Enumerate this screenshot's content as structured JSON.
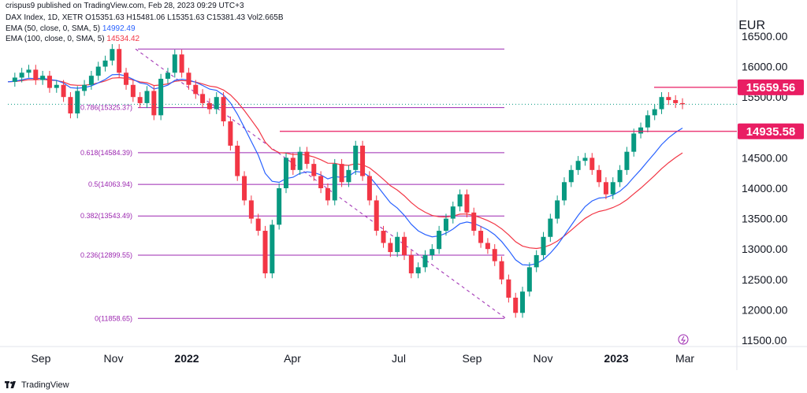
{
  "header": {
    "published": "crispus9 published on TradingView.com, Feb 28, 2023 09:29 UTC+3",
    "symbol": "DAX Index, 1D, XETR",
    "ohlc": "O15351.63 H15481.06 L15351.63 C15381.43 Vol2.665B",
    "ema50_label": "EMA (50, close, 0, SMA, 5)",
    "ema50_value": "14992.49",
    "ema100_label": "EMA (100, close, 0, SMA, 5)",
    "ema100_value": "14534.42",
    "currency": "EUR"
  },
  "footer": {
    "brand": "TradingView"
  },
  "colors": {
    "up": "#089981",
    "down": "#f23645",
    "ema50": "#2962ff",
    "ema100": "#f23645",
    "fib": "#9c27b0",
    "horizontal": "#e91e63",
    "price_tag": "#e91e63"
  },
  "chart_data": {
    "type": "candlestick",
    "title": "DAX Index, 1D, XETR",
    "x_ticks": [
      "Sep",
      "Nov",
      "2022",
      "Apr",
      "Jul",
      "Sep",
      "Nov",
      "2023",
      "Mar"
    ],
    "y_ticks": [
      "16500.00",
      "16000.00",
      "15500.00",
      "15000.00",
      "14500.00",
      "14000.00",
      "13500.00",
      "13000.00",
      "12500.00",
      "12000.00",
      "11500.00"
    ],
    "ylim": [
      11500,
      16500
    ],
    "fib_levels": [
      {
        "ratio": "1",
        "value": 16290
      },
      {
        "ratio": "0.786",
        "label": "0.786(15325.37)",
        "value": 15325.37
      },
      {
        "ratio": "0.618",
        "label": "0.618(14584.39)",
        "value": 14584.39
      },
      {
        "ratio": "0.5",
        "label": "0.5(14063.94)",
        "value": 14063.94
      },
      {
        "ratio": "0.382",
        "label": "0.382(13543.49)",
        "value": 13543.49
      },
      {
        "ratio": "0.236",
        "label": "0.236(12899.55)",
        "value": 12899.55
      },
      {
        "ratio": "0",
        "label": "0(11858.65)",
        "value": 11858.65
      }
    ],
    "price_tags": [
      {
        "label": "15659.56",
        "value": 15659.56
      },
      {
        "label": "14935.58",
        "value": 14935.58
      }
    ],
    "last_close": 15381.43,
    "series_close": [
      15750,
      15820,
      15900,
      15950,
      15780,
      15850,
      15650,
      15700,
      15500,
      15230,
      15600,
      15700,
      15850,
      16000,
      16100,
      16290,
      15900,
      15700,
      15500,
      15400,
      15600,
      15200,
      15800,
      15900,
      16200,
      15900,
      15700,
      15550,
      15400,
      15300,
      15500,
      15100,
      14700,
      14200,
      13800,
      13500,
      13300,
      12600,
      13400,
      14000,
      14500,
      14300,
      14600,
      14400,
      14200,
      14000,
      13800,
      14400,
      14100,
      14300,
      14700,
      14200,
      13800,
      13300,
      13100,
      12950,
      13200,
      12900,
      12600,
      12700,
      12900,
      13000,
      13300,
      13500,
      13700,
      13900,
      13600,
      13300,
      13100,
      13000,
      12800,
      12500,
      12200,
      11950,
      12300,
      12700,
      12900,
      13200,
      13500,
      13800,
      14100,
      14300,
      14450,
      14500,
      14300,
      14100,
      13900,
      14100,
      14300,
      14600,
      14900,
      15000,
      15200,
      15300,
      15500,
      15450,
      15400,
      15381
    ]
  }
}
